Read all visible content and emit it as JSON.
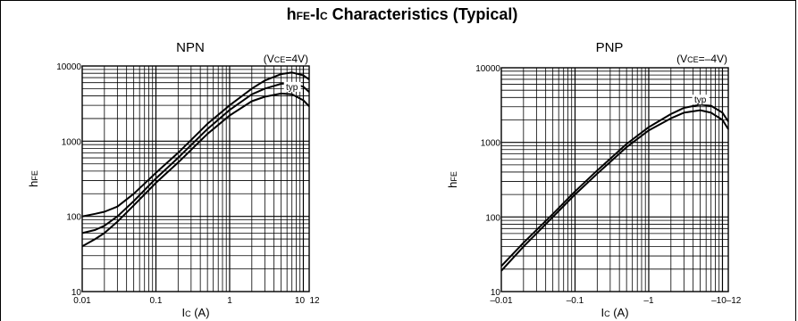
{
  "figure": {
    "title_main": "h",
    "title_main_sub": "FE",
    "title_main_tail": "-I",
    "title_main_sub2": "C",
    "title_main_rest": " Characteristics (Typical)"
  },
  "chart_data": [
    {
      "type": "line",
      "title": "NPN",
      "condition": "(VCE=4V)",
      "condition_parts": {
        "open": "(V",
        "sub": "CE",
        "rest": "=4V)"
      },
      "xlabel": "Ic  (A)",
      "xlabel_parts": {
        "main": "I",
        "sub": "C",
        "unit": "  (A)"
      },
      "ylabel": "hFE",
      "ylabel_parts": {
        "main": "h",
        "sub": "FE"
      },
      "xscale": "log",
      "yscale": "log",
      "xlim": [
        0.01,
        12
      ],
      "ylim": [
        10,
        10000
      ],
      "x_tick_labels": [
        "0.01",
        "0.1",
        "1",
        "10",
        "12"
      ],
      "x_tick_values": [
        0.01,
        0.1,
        1,
        10,
        12
      ],
      "y_tick_labels": [
        "10",
        "100",
        "1000",
        "10000"
      ],
      "y_tick_values": [
        10,
        100,
        1000,
        10000
      ],
      "grid": true,
      "annotation": "typ",
      "annotation_at": [
        7,
        4800
      ],
      "series": [
        {
          "x": [
            0.01,
            0.015,
            0.02,
            0.03,
            0.05,
            0.1,
            0.2,
            0.5,
            1,
            2,
            3,
            5,
            7,
            10,
            12
          ],
          "y": [
            100,
            108,
            115,
            135,
            200,
            380,
            700,
            1700,
            3000,
            5000,
            6400,
            7800,
            8200,
            7500,
            6600
          ]
        },
        {
          "x": [
            0.01,
            0.015,
            0.02,
            0.03,
            0.05,
            0.1,
            0.2,
            0.5,
            1,
            2,
            3,
            5,
            7,
            10,
            12
          ],
          "y": [
            60,
            66,
            75,
            100,
            160,
            320,
            600,
            1450,
            2600,
            4200,
            5000,
            5800,
            5900,
            5300,
            4500
          ]
        },
        {
          "x": [
            0.01,
            0.015,
            0.02,
            0.03,
            0.05,
            0.1,
            0.2,
            0.5,
            1,
            2,
            3,
            5,
            7,
            10,
            12
          ],
          "y": [
            40,
            50,
            60,
            85,
            140,
            280,
            520,
            1250,
            2200,
            3400,
            3900,
            4300,
            4200,
            3500,
            2900
          ]
        }
      ]
    },
    {
      "type": "line",
      "title": "PNP",
      "condition": "(VCE=–4V)",
      "condition_parts": {
        "open": "(V",
        "sub": "CE",
        "rest": "=–4V)"
      },
      "xlabel": "Ic  (A)",
      "xlabel_parts": {
        "main": "I",
        "sub": "C",
        "unit": "  (A)"
      },
      "ylabel": "hFE",
      "ylabel_parts": {
        "main": "h",
        "sub": "FE"
      },
      "xscale": "log",
      "yscale": "log",
      "xlim": [
        -0.01,
        -12
      ],
      "ylim": [
        10,
        10000
      ],
      "x_tick_labels": [
        "–0.01",
        "–0.1",
        "–1",
        "–10",
        "–12"
      ],
      "x_tick_values": [
        -0.01,
        -0.1,
        -1,
        -10,
        -12
      ],
      "y_tick_labels": [
        "10",
        "100",
        "1000",
        "10000"
      ],
      "y_tick_values": [
        10,
        100,
        1000,
        10000
      ],
      "grid": true,
      "annotation": "typ",
      "annotation_at": [
        -5,
        3400
      ],
      "series": [
        {
          "x": [
            -0.01,
            -0.02,
            -0.05,
            -0.1,
            -0.2,
            -0.5,
            -1,
            -2,
            -3,
            -5,
            -7,
            -10,
            -12
          ],
          "y": [
            22,
            45,
            110,
            220,
            420,
            950,
            1600,
            2400,
            2900,
            3200,
            3100,
            2500,
            1900
          ]
        },
        {
          "x": [
            -0.01,
            -0.02,
            -0.05,
            -0.1,
            -0.2,
            -0.5,
            -1,
            -2,
            -3,
            -5,
            -7,
            -10,
            -12
          ],
          "y": [
            19,
            40,
            100,
            200,
            380,
            860,
            1450,
            2100,
            2500,
            2700,
            2500,
            2000,
            1500
          ]
        }
      ]
    }
  ]
}
